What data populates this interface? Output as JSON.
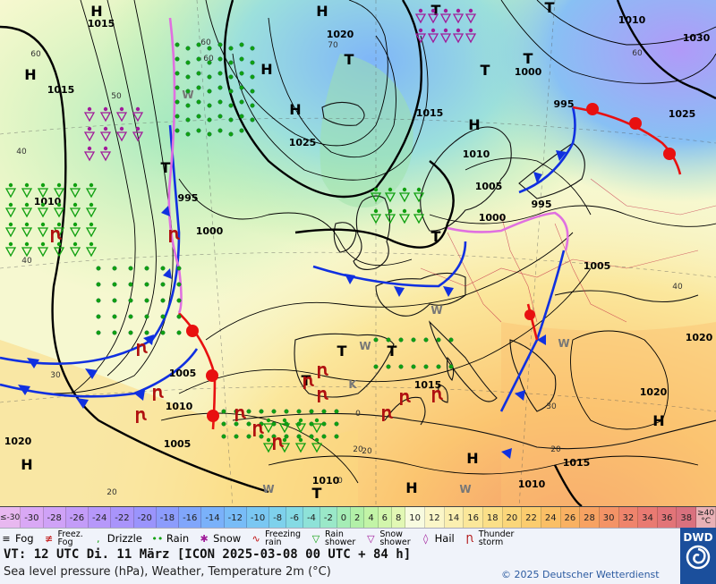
{
  "map": {
    "pressure_high_labels": [
      "H",
      "H",
      "H",
      "H",
      "H",
      "H",
      "H",
      "H",
      "H",
      "H"
    ],
    "pressure_low_labels": [
      "T",
      "T",
      "T",
      "T",
      "T",
      "T",
      "T",
      "T",
      "T",
      "T",
      "T"
    ],
    "isobar_labels": [
      "1015",
      "1015",
      "1020",
      "1025",
      "1000",
      "1015",
      "1025",
      "1030",
      "995",
      "1010",
      "1005",
      "1000",
      "995",
      "1005",
      "1010",
      "995",
      "1000",
      "1005",
      "1015",
      "1010",
      "1020",
      "1005",
      "1010",
      "1010",
      "1015",
      "1020",
      "1020",
      "1010"
    ],
    "temp_labels": [
      "60",
      "50",
      "40",
      "40",
      "30",
      "20",
      "60",
      "70",
      "60",
      "60",
      "40",
      "30",
      "20",
      "20",
      "20",
      "0",
      "0"
    ],
    "weather_letters": [
      "W",
      "W",
      "W",
      "W",
      "K",
      "W",
      "W"
    ]
  },
  "scale": {
    "cells": [
      {
        "label": "≤-30",
        "color": "#e8b8f0"
      },
      {
        "label": "-30",
        "color": "#d9a8f5"
      },
      {
        "label": "-28",
        "color": "#cfa2f7"
      },
      {
        "label": "-26",
        "color": "#c39cf8"
      },
      {
        "label": "-24",
        "color": "#b698fa"
      },
      {
        "label": "-22",
        "color": "#a994fb"
      },
      {
        "label": "-20",
        "color": "#9a94fc"
      },
      {
        "label": "-18",
        "color": "#8c9cfc"
      },
      {
        "label": "-16",
        "color": "#80a6fb"
      },
      {
        "label": "-14",
        "color": "#7ab1fa"
      },
      {
        "label": "-12",
        "color": "#78bcf7"
      },
      {
        "label": "-10",
        "color": "#7ac7f2"
      },
      {
        "label": "-8",
        "color": "#7ed1ec"
      },
      {
        "label": "-6",
        "color": "#84dae4"
      },
      {
        "label": "-4",
        "color": "#8ee2d8"
      },
      {
        "label": "-2",
        "color": "#9ae8c8"
      },
      {
        "label": "0",
        "color": "#a5edb5"
      },
      {
        "label": "2",
        "color": "#b2f0a8"
      },
      {
        "label": "4",
        "color": "#c2f4a6"
      },
      {
        "label": "6",
        "color": "#d2f6ac"
      },
      {
        "label": "8",
        "color": "#e2f8b4"
      },
      {
        "label": "10",
        "color": "#f8fbe0"
      },
      {
        "label": "12",
        "color": "#fbf6c8"
      },
      {
        "label": "14",
        "color": "#fbefb0"
      },
      {
        "label": "16",
        "color": "#fbe79a"
      },
      {
        "label": "18",
        "color": "#fbdf88"
      },
      {
        "label": "20",
        "color": "#fbd67a"
      },
      {
        "label": "22",
        "color": "#fbcc6e"
      },
      {
        "label": "24",
        "color": "#fabf66"
      },
      {
        "label": "26",
        "color": "#f9b162"
      },
      {
        "label": "28",
        "color": "#f7a262"
      },
      {
        "label": "30",
        "color": "#f49366"
      },
      {
        "label": "32",
        "color": "#ef846c"
      },
      {
        "label": "34",
        "color": "#e97a72"
      },
      {
        "label": "36",
        "color": "#e27478"
      },
      {
        "label": "38",
        "color": "#d9717e"
      },
      {
        "label": "≥40 °C",
        "color": "#e9b1b6"
      }
    ]
  },
  "legend": {
    "fog": "Fog",
    "freez_fog_1": "Freez.",
    "freez_fog_2": "Fog",
    "drizzle": "Drizzle",
    "rain": "Rain",
    "snow": "Snow",
    "freezing_rain_1": "Freezing",
    "freezing_rain_2": "rain",
    "rain_shower_1": "Rain",
    "rain_shower_2": "shower",
    "snow_shower_1": "Snow",
    "snow_shower_2": "shower",
    "hail": "Hail",
    "thunderstorm_1": "Thunder",
    "thunderstorm_2": "storm"
  },
  "info": {
    "valid_time": "VT: 12 UTC Di.  11 März [ICON 2025-03-08  00 UTC + 84 h]",
    "description": "Sea level pressure (hPa), Weather, Temperature 2m (°C)",
    "copyright": "© 2025 Deutscher Wetterdienst",
    "logo": "DWD"
  },
  "colors": {
    "front_cold": "#1030e0",
    "front_warm": "#e81010",
    "front_occluded": "#e070e0",
    "isobar": "#000000",
    "rain": "#10a010",
    "snow": "#a01c9a",
    "thunder": "#b01010"
  }
}
